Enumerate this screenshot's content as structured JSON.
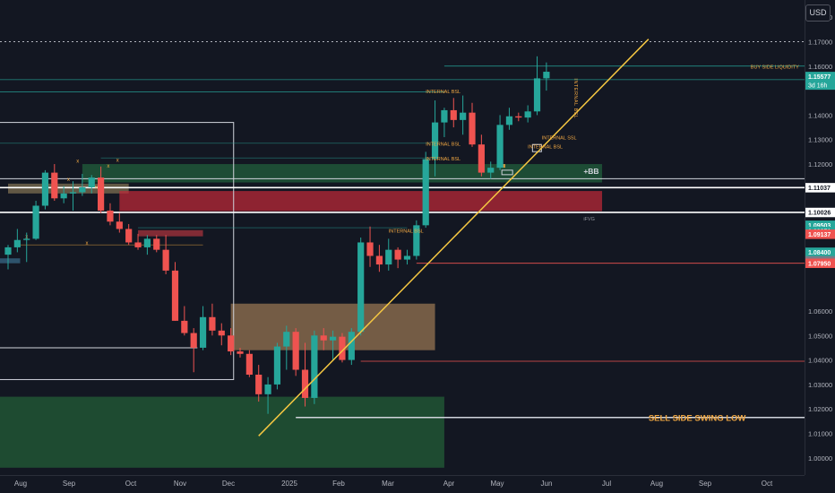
{
  "currency_button": "USD",
  "colors": {
    "background": "#131722",
    "up": "#26a69a",
    "down": "#ef5350",
    "trendline": "#f5c742",
    "annotation": "#f0a742"
  },
  "chart_data": {
    "type": "candlestick",
    "timeframe": "weekly",
    "ylim": [
      0.993,
      1.187
    ],
    "grid": false,
    "x_tick_labels": [
      "Aug",
      "Sep",
      "Oct",
      "Nov",
      "Dec",
      "2025",
      "Feb",
      "Mar",
      "Apr",
      "May",
      "Jun",
      "Jul",
      "Aug",
      "Sep",
      "Oct"
    ],
    "y_tick_labels": [
      "1.18000",
      "1.17000",
      "1.16000",
      "1.14000",
      "1.13000",
      "1.12000",
      "1.06000",
      "1.05000",
      "1.04000",
      "1.03000",
      "1.02000",
      "1.01000",
      "1.00000"
    ],
    "price_badges": [
      {
        "text": "1.15577",
        "value": 1.15577,
        "color": "#26a69a",
        "countdown": "3d 16h"
      },
      {
        "text": "1.11037",
        "value": 1.11037,
        "color": "#ffffff"
      },
      {
        "text": "1.10026",
        "value": 1.10026,
        "color": "#ffffff"
      },
      {
        "text": "1.09503",
        "value": 1.09503,
        "color": "#26a69a"
      },
      {
        "text": "1.09251",
        "value": 1.09251,
        "color": "#26a69a"
      },
      {
        "text": "1.09137",
        "value": 1.09137,
        "color": "#ef5350"
      },
      {
        "text": "1.08400",
        "value": 1.084,
        "color": "#26a69a"
      },
      {
        "text": "1.08050",
        "value": 1.0805,
        "color": "#787b86"
      },
      {
        "text": "1.07950",
        "value": 1.0795,
        "color": "#ef5350"
      }
    ],
    "candles": [
      {
        "o": 1.083,
        "h": 1.087,
        "l": 1.077,
        "c": 1.086
      },
      {
        "o": 1.086,
        "h": 1.0935,
        "l": 1.084,
        "c": 1.089
      },
      {
        "o": 1.089,
        "h": 1.092,
        "l": 1.08,
        "c": 1.0895
      },
      {
        "o": 1.0895,
        "h": 1.105,
        "l": 1.089,
        "c": 1.103
      },
      {
        "o": 1.103,
        "h": 1.1175,
        "l": 1.1015,
        "c": 1.1165
      },
      {
        "o": 1.1165,
        "h": 1.12,
        "l": 1.105,
        "c": 1.106
      },
      {
        "o": 1.106,
        "h": 1.111,
        "l": 1.104,
        "c": 1.108
      },
      {
        "o": 1.108,
        "h": 1.113,
        "l": 1.101,
        "c": 1.1085
      },
      {
        "o": 1.1085,
        "h": 1.116,
        "l": 1.107,
        "c": 1.1105
      },
      {
        "o": 1.1105,
        "h": 1.1155,
        "l": 1.108,
        "c": 1.1145
      },
      {
        "o": 1.1145,
        "h": 1.119,
        "l": 1.1,
        "c": 1.101
      },
      {
        "o": 1.101,
        "h": 1.104,
        "l": 1.095,
        "c": 1.0965
      },
      {
        "o": 1.0965,
        "h": 1.1,
        "l": 1.092,
        "c": 1.0935
      },
      {
        "o": 1.0935,
        "h": 1.0955,
        "l": 1.087,
        "c": 1.088
      },
      {
        "o": 1.088,
        "h": 1.0915,
        "l": 1.085,
        "c": 1.086
      },
      {
        "o": 1.086,
        "h": 1.091,
        "l": 1.083,
        "c": 1.0895
      },
      {
        "o": 1.0895,
        "h": 1.091,
        "l": 1.084,
        "c": 1.085
      },
      {
        "o": 1.085,
        "h": 1.091,
        "l": 1.075,
        "c": 1.0765
      },
      {
        "o": 1.0765,
        "h": 1.08,
        "l": 1.056,
        "c": 1.056
      },
      {
        "o": 1.056,
        "h": 1.062,
        "l": 1.05,
        "c": 1.051
      },
      {
        "o": 1.051,
        "h": 1.053,
        "l": 1.035,
        "c": 1.045
      },
      {
        "o": 1.045,
        "h": 1.062,
        "l": 1.044,
        "c": 1.0575
      },
      {
        "o": 1.0575,
        "h": 1.063,
        "l": 1.05,
        "c": 1.052
      },
      {
        "o": 1.052,
        "h": 1.055,
        "l": 1.046,
        "c": 1.05
      },
      {
        "o": 1.05,
        "h": 1.053,
        "l": 1.042,
        "c": 1.0435
      },
      {
        "o": 1.0435,
        "h": 1.045,
        "l": 1.041,
        "c": 1.0425
      },
      {
        "o": 1.0425,
        "h": 1.044,
        "l": 1.033,
        "c": 1.034
      },
      {
        "o": 1.034,
        "h": 1.038,
        "l": 1.023,
        "c": 1.026
      },
      {
        "o": 1.026,
        "h": 1.033,
        "l": 1.018,
        "c": 1.03
      },
      {
        "o": 1.03,
        "h": 1.047,
        "l": 1.028,
        "c": 1.0455
      },
      {
        "o": 1.0455,
        "h": 1.054,
        "l": 1.036,
        "c": 1.0515
      },
      {
        "o": 1.0515,
        "h": 1.053,
        "l": 1.0335,
        "c": 1.036
      },
      {
        "o": 1.036,
        "h": 1.047,
        "l": 1.021,
        "c": 1.0245
      },
      {
        "o": 1.0245,
        "h": 1.052,
        "l": 1.022,
        "c": 1.05
      },
      {
        "o": 1.05,
        "h": 1.053,
        "l": 1.044,
        "c": 1.048
      },
      {
        "o": 1.048,
        "h": 1.052,
        "l": 1.04,
        "c": 1.0495
      },
      {
        "o": 1.0495,
        "h": 1.051,
        "l": 1.039,
        "c": 1.04
      },
      {
        "o": 1.04,
        "h": 1.053,
        "l": 1.038,
        "c": 1.0515
      },
      {
        "o": 1.0515,
        "h": 1.09,
        "l": 1.05,
        "c": 1.088
      },
      {
        "o": 1.088,
        "h": 1.0945,
        "l": 1.078,
        "c": 1.0825
      },
      {
        "o": 1.0825,
        "h": 1.087,
        "l": 1.076,
        "c": 1.079
      },
      {
        "o": 1.079,
        "h": 1.0895,
        "l": 1.0765,
        "c": 1.085
      },
      {
        "o": 1.085,
        "h": 1.086,
        "l": 1.0775,
        "c": 1.081
      },
      {
        "o": 1.081,
        "h": 1.085,
        "l": 1.079,
        "c": 1.0825
      },
      {
        "o": 1.0825,
        "h": 1.097,
        "l": 1.081,
        "c": 1.095
      },
      {
        "o": 1.095,
        "h": 1.125,
        "l": 1.094,
        "c": 1.122
      },
      {
        "o": 1.122,
        "h": 1.146,
        "l": 1.115,
        "c": 1.137
      },
      {
        "o": 1.137,
        "h": 1.143,
        "l": 1.131,
        "c": 1.142
      },
      {
        "o": 1.142,
        "h": 1.147,
        "l": 1.135,
        "c": 1.138
      },
      {
        "o": 1.138,
        "h": 1.148,
        "l": 1.132,
        "c": 1.141
      },
      {
        "o": 1.141,
        "h": 1.145,
        "l": 1.127,
        "c": 1.128
      },
      {
        "o": 1.128,
        "h": 1.132,
        "l": 1.115,
        "c": 1.1165
      },
      {
        "o": 1.1165,
        "h": 1.121,
        "l": 1.114,
        "c": 1.1185
      },
      {
        "o": 1.1185,
        "h": 1.14,
        "l": 1.1175,
        "c": 1.136
      },
      {
        "o": 1.136,
        "h": 1.143,
        "l": 1.134,
        "c": 1.1395
      },
      {
        "o": 1.1395,
        "h": 1.141,
        "l": 1.1375,
        "c": 1.139
      },
      {
        "o": 1.139,
        "h": 1.144,
        "l": 1.137,
        "c": 1.1415
      },
      {
        "o": 1.1415,
        "h": 1.164,
        "l": 1.14,
        "c": 1.155
      },
      {
        "o": 1.155,
        "h": 1.1615,
        "l": 1.15,
        "c": 1.1577
      }
    ],
    "trendline": {
      "from": {
        "candle": 27,
        "price": 1.009
      },
      "to": {
        "candle": 69,
        "price": 1.171
      }
    },
    "zones": [
      {
        "name": "green-zone-upper",
        "y1": 1.12,
        "y2": 1.1125,
        "x1_candle": 8,
        "x2_candle": 64,
        "fill": "rgba(38,120,70,0.55)"
      },
      {
        "name": "tan-zone-left",
        "y1": 1.112,
        "y2": 1.108,
        "x1_candle": 0,
        "x2_candle": 13,
        "fill": "rgba(196,168,112,0.45)"
      },
      {
        "name": "red-zone-fvg",
        "y1": 1.109,
        "y2": 1.1008,
        "x1_candle": 12,
        "x2_candle": 64,
        "fill": "rgba(190,40,55,0.72)"
      },
      {
        "name": "red-zone-small",
        "y1": 1.093,
        "y2": 1.0905,
        "x1_candle": 14,
        "x2_candle": 21,
        "fill": "rgba(220,60,70,0.55)"
      },
      {
        "name": "tan-zone-middle",
        "y1": 1.063,
        "y2": 1.044,
        "x1_candle": 24,
        "x2_candle": 46,
        "fill": "rgba(196,150,98,0.55)"
      },
      {
        "name": "green-zone-bottom",
        "y1": 1.025,
        "y2": 0.996,
        "x1_candle": -3,
        "x2_candle": 47,
        "fill": "rgba(38,110,60,0.6)"
      }
    ],
    "annotations": [
      {
        "text": "BUY SIDE LIQUIDITY",
        "price": 1.159,
        "at_candle": 80
      },
      {
        "text": "INTERNAL BSL",
        "price": 1.149,
        "at_candle": 45
      },
      {
        "text": "INTERNAL BSL",
        "price": 1.1275,
        "at_candle": 45
      },
      {
        "text": "INTERNAL BSL",
        "price": 1.1215,
        "at_candle": 45
      },
      {
        "text": "INTERNAL BSL",
        "price": 1.092,
        "at_candle": 41
      },
      {
        "text": "INTERNAL SSL",
        "price": 1.13,
        "at_candle": 57.5
      },
      {
        "text": "INTERNAL BSL",
        "price": 1.1265,
        "at_candle": 56
      },
      {
        "text": "INTERNAL BSL",
        "price": 1.155,
        "at_candle": 61,
        "vertical": true
      },
      {
        "text": "+BB",
        "price": 1.116,
        "at_candle": 62,
        "bold": true,
        "color": "#d1d4dc"
      },
      {
        "text": "iFVG",
        "price": 1.097,
        "at_candle": 62,
        "color": "#9598a1"
      },
      {
        "text": "SELL SIDE SWING LOW",
        "price": 1.0165,
        "at_candle": 69,
        "color": "#f0a742",
        "big": true
      }
    ]
  }
}
